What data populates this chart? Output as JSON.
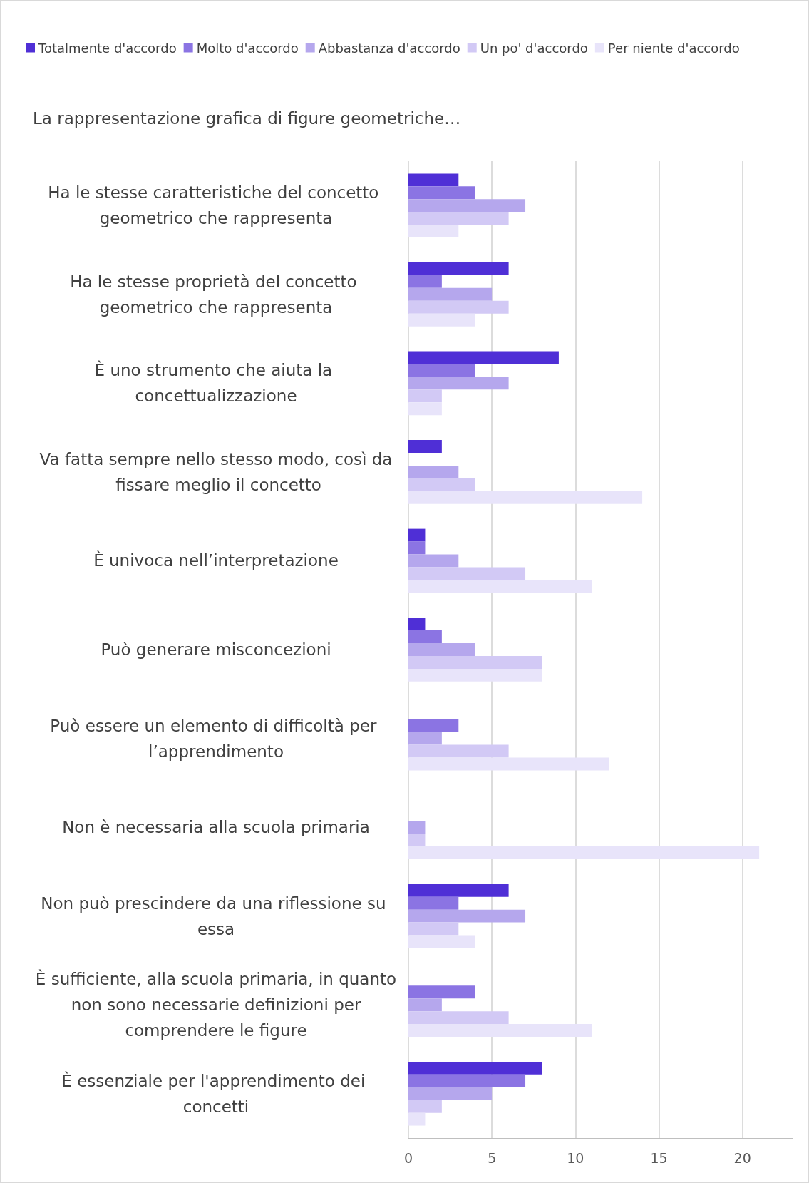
{
  "chart_data": {
    "type": "bar",
    "orientation": "horizontal",
    "title": "La rappresentazione grafica di figure geometriche…",
    "categories": [
      "Ha le stesse caratteristiche del concetto geometrico che rappresenta",
      "Ha le stesse proprietà del concetto geometrico che rappresenta",
      "È uno strumento che aiuta la concettualizzazione",
      "Va fatta sempre nello stesso modo, così da fissare meglio il concetto",
      "È univoca nell’interpretazione",
      "Può generare misconcezioni",
      "Può essere un elemento di difficoltà per l’apprendimento",
      "Non è necessaria alla scuola primaria",
      "Non può prescindere da una riflessione su essa",
      "È sufficiente, alla scuola primaria, in quanto non sono necessarie definizioni per comprendere le figure",
      "È essenziale per l'apprendimento dei concetti"
    ],
    "series": [
      {
        "name": "Totalmente d'accordo",
        "color": "#4f2fd6",
        "values": [
          3,
          6,
          9,
          2,
          1,
          1,
          0,
          0,
          6,
          0,
          8
        ]
      },
      {
        "name": "Molto d'accordo",
        "color": "#8b74e3",
        "values": [
          4,
          2,
          4,
          0,
          1,
          2,
          3,
          0,
          3,
          4,
          7
        ]
      },
      {
        "name": "Abbastanza d'accordo",
        "color": "#b5a7ed",
        "values": [
          7,
          5,
          6,
          3,
          3,
          4,
          2,
          1,
          7,
          2,
          5
        ]
      },
      {
        "name": "Un po' d'accordo",
        "color": "#d2c9f5",
        "values": [
          6,
          6,
          2,
          4,
          7,
          8,
          6,
          1,
          3,
          6,
          2
        ]
      },
      {
        "name": "Per niente d'accordo",
        "color": "#e8e4fa",
        "values": [
          3,
          4,
          2,
          14,
          11,
          8,
          12,
          21,
          4,
          11,
          1
        ]
      }
    ],
    "xlim": [
      0,
      23
    ],
    "xticks": [
      0,
      5,
      10,
      15,
      20
    ],
    "grid": "x",
    "legend": "top left"
  }
}
